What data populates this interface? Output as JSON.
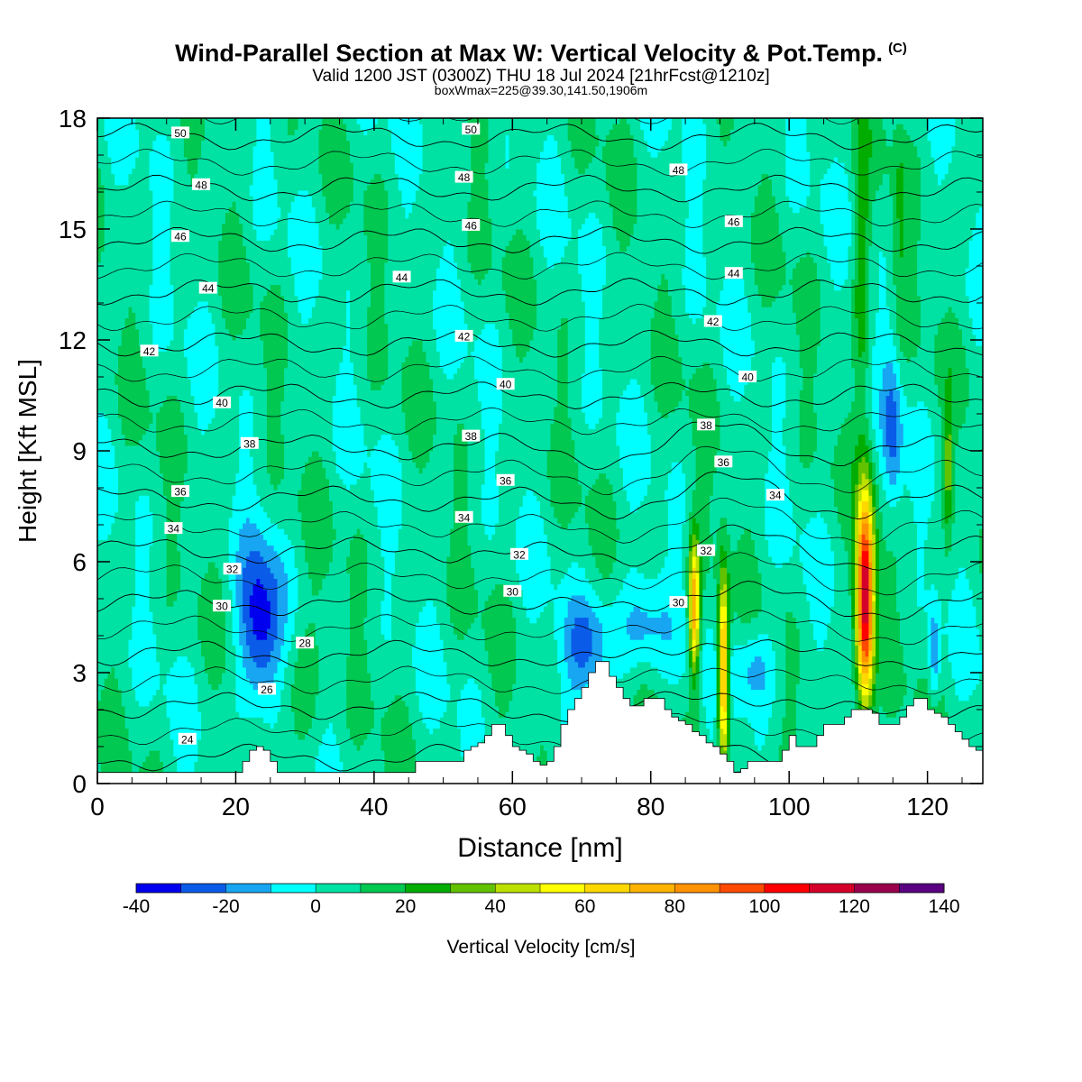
{
  "header": {
    "title": "Wind-Parallel Section at Max W: Vertical Velocity & Pot.Temp.",
    "copyright": "(C)",
    "valid": "Valid 1200 JST (0300Z) THU 18 Jul 2024 [21hrFcst@1210z]",
    "box": "boxWmax=225@39.30,141.50,1906m"
  },
  "chart_data": {
    "type": "heatmap",
    "title": "Wind-Parallel Section at Max W: Vertical Velocity & Pot.Temp.",
    "xlabel": "Distance [nm]",
    "ylabel": "Height [Kft MSL]",
    "xlim": [
      0,
      128
    ],
    "ylim": [
      0,
      18
    ],
    "x_ticks": [
      0,
      20,
      40,
      60,
      80,
      100,
      120
    ],
    "y_ticks": [
      0,
      3,
      6,
      9,
      12,
      15,
      18
    ],
    "colorbar": {
      "label": "Vertical Velocity [cm/s]",
      "min": -40,
      "step": 10,
      "tick_labels": [
        -40,
        -20,
        0,
        20,
        40,
        60,
        80,
        100,
        120,
        140
      ],
      "colors": [
        "#0000ee",
        "#0a5ce8",
        "#18a6f2",
        "#00ffff",
        "#00e2a4",
        "#00c850",
        "#00ad00",
        "#63c200",
        "#bde000",
        "#ffff00",
        "#ffd800",
        "#ffb300",
        "#ff9200",
        "#ff4a00",
        "#ff0000",
        "#d4002a",
        "#9a004c",
        "#5a0080"
      ]
    },
    "background_velocity": 5,
    "velocity_cells": [
      {
        "x": 23.5,
        "y": 4.2,
        "sx": 2.2,
        "sy": 1.6,
        "w": -42
      },
      {
        "x": 71,
        "y": 3.8,
        "sx": 2.5,
        "sy": 0.9,
        "w": -28
      },
      {
        "x": 79,
        "y": 4.2,
        "sx": 2.5,
        "sy": 1.0,
        "w": -20
      },
      {
        "x": 95,
        "y": 3.2,
        "sx": 2.5,
        "sy": 0.8,
        "w": -20
      },
      {
        "x": 115,
        "y": 9.5,
        "sx": 1.0,
        "sy": 1.6,
        "w": -25
      },
      {
        "x": 121,
        "y": 3.5,
        "sx": 0.6,
        "sy": 0.9,
        "w": -25
      },
      {
        "x": 29,
        "y": 2.8,
        "sx": 2.5,
        "sy": 1.5,
        "w": 12
      },
      {
        "x": 86.3,
        "y": 4.8,
        "sx": 0.55,
        "sy": 1.3,
        "w": 75
      },
      {
        "x": 90.5,
        "y": 3.0,
        "sx": 0.55,
        "sy": 1.8,
        "w": 85
      },
      {
        "x": 111,
        "y": 5.0,
        "sx": 0.9,
        "sy": 2.0,
        "w": 120
      },
      {
        "x": 110.5,
        "y": 14.0,
        "sx": 0.8,
        "sy": 2.5,
        "w": 25
      },
      {
        "x": 123,
        "y": 8.5,
        "sx": 0.5,
        "sy": 1.2,
        "w": 30
      },
      {
        "x": 116,
        "y": 15.0,
        "sx": 0.7,
        "sy": 2.5,
        "w": 12
      }
    ],
    "theta_isentropes_K": [
      22,
      24,
      26,
      28,
      30,
      32,
      34,
      36,
      38,
      40,
      42,
      44,
      46,
      48,
      50,
      52
    ],
    "theta_labels": [
      {
        "text": "50",
        "x": 12,
        "y": 17.6
      },
      {
        "text": "48",
        "x": 15,
        "y": 16.2
      },
      {
        "text": "46",
        "x": 12,
        "y": 14.8
      },
      {
        "text": "44",
        "x": 16,
        "y": 13.4
      },
      {
        "text": "42",
        "x": 7.5,
        "y": 11.7
      },
      {
        "text": "40",
        "x": 18,
        "y": 10.3
      },
      {
        "text": "38",
        "x": 22,
        "y": 9.2
      },
      {
        "text": "36",
        "x": 12,
        "y": 7.9
      },
      {
        "text": "34",
        "x": 11,
        "y": 6.9
      },
      {
        "text": "32",
        "x": 19.5,
        "y": 5.8
      },
      {
        "text": "30",
        "x": 18,
        "y": 4.8
      },
      {
        "text": "28",
        "x": 30,
        "y": 3.8
      },
      {
        "text": "26",
        "x": 24.5,
        "y": 2.55
      },
      {
        "text": "24",
        "x": 13,
        "y": 1.2
      },
      {
        "text": "50",
        "x": 54,
        "y": 17.7
      },
      {
        "text": "48",
        "x": 53,
        "y": 16.4
      },
      {
        "text": "46",
        "x": 54,
        "y": 15.1
      },
      {
        "text": "44",
        "x": 44,
        "y": 13.7
      },
      {
        "text": "42",
        "x": 53,
        "y": 12.1
      },
      {
        "text": "40",
        "x": 59,
        "y": 10.8
      },
      {
        "text": "38",
        "x": 54,
        "y": 9.4
      },
      {
        "text": "36",
        "x": 59,
        "y": 8.2
      },
      {
        "text": "34",
        "x": 53,
        "y": 7.2
      },
      {
        "text": "32",
        "x": 61,
        "y": 6.2
      },
      {
        "text": "30",
        "x": 60,
        "y": 5.2
      },
      {
        "text": "48",
        "x": 84,
        "y": 16.6
      },
      {
        "text": "46",
        "x": 92,
        "y": 15.2
      },
      {
        "text": "44",
        "x": 92,
        "y": 13.8
      },
      {
        "text": "42",
        "x": 89,
        "y": 12.5
      },
      {
        "text": "40",
        "x": 94,
        "y": 11.0
      },
      {
        "text": "38",
        "x": 88,
        "y": 9.7
      },
      {
        "text": "36",
        "x": 90.5,
        "y": 8.7
      },
      {
        "text": "34",
        "x": 98,
        "y": 7.8
      },
      {
        "text": "32",
        "x": 88,
        "y": 6.3
      },
      {
        "text": "30",
        "x": 84,
        "y": 4.9
      }
    ],
    "terrain_height_kft": [
      0.3,
      0.3,
      0.3,
      0.3,
      0.3,
      0.3,
      0.3,
      0.3,
      0.3,
      0.3,
      0.3,
      0.3,
      0.3,
      0.3,
      0.3,
      0.3,
      0.3,
      0.3,
      0.3,
      0.3,
      0.3,
      0.6,
      0.9,
      1.0,
      0.9,
      0.6,
      0.3,
      0.3,
      0.3,
      0.3,
      0.3,
      0.3,
      0.3,
      0.3,
      0.3,
      0.3,
      0.3,
      0.3,
      0.3,
      0.3,
      0.3,
      0.3,
      0.3,
      0.3,
      0.3,
      0.3,
      0.6,
      0.6,
      0.6,
      0.6,
      0.6,
      0.6,
      0.6,
      0.9,
      1.0,
      1.1,
      1.3,
      1.6,
      1.6,
      1.3,
      1.0,
      0.9,
      0.8,
      0.6,
      0.5,
      0.6,
      1.0,
      1.6,
      2.0,
      2.3,
      2.6,
      3.0,
      3.3,
      3.3,
      2.9,
      2.6,
      2.3,
      2.1,
      2.1,
      2.3,
      2.3,
      2.3,
      2.0,
      1.8,
      1.7,
      1.6,
      1.4,
      1.3,
      1.1,
      1.0,
      0.8,
      0.6,
      0.3,
      0.4,
      0.6,
      0.6,
      0.6,
      0.6,
      0.6,
      0.9,
      1.3,
      1.0,
      1.0,
      1.0,
      1.3,
      1.6,
      1.6,
      1.6,
      1.8,
      2.0,
      2.0,
      2.0,
      1.9,
      1.6,
      1.6,
      1.6,
      1.8,
      2.1,
      2.3,
      2.3,
      2.0,
      1.9,
      1.8,
      1.6,
      1.4,
      1.2,
      1.0,
      0.9,
      0.9
    ]
  }
}
